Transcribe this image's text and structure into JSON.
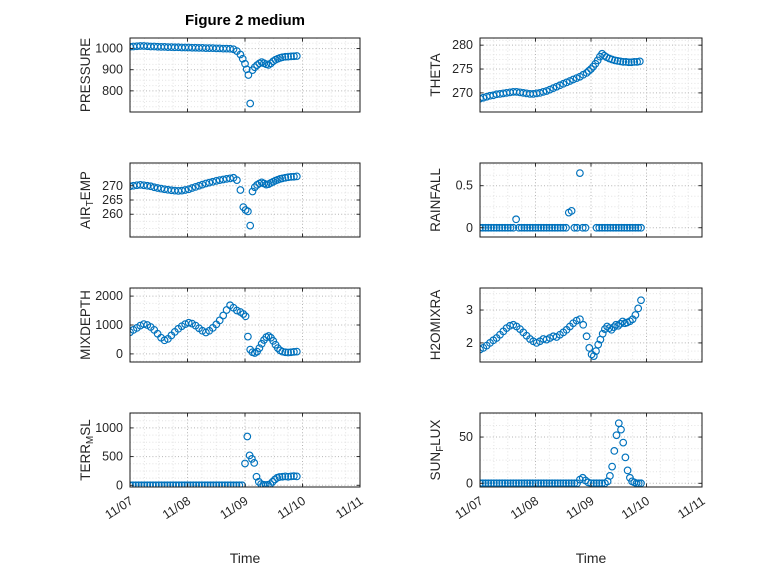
{
  "title": "Figure 2 medium",
  "axis": {
    "xlabel": "Time",
    "xlim": [
      0,
      4
    ],
    "xticks": [
      0,
      1,
      2,
      3,
      4
    ],
    "xticklabels": [
      "11/07",
      "11/08",
      "11/09",
      "11/10",
      "11/11"
    ],
    "x_minor_step": 0.25
  },
  "style": {
    "marker_color": "#0072BD",
    "axis_color": "#1a1a1a",
    "label_color": "#262626",
    "grid_major": "#b5b5b5",
    "grid_minor": "#e2e2e2"
  },
  "chart_data": [
    {
      "type": "scatter",
      "row": 0,
      "col": 0,
      "name": "PRESSURE",
      "ylabel": [
        {
          "text": "PRESSURE",
          "sub": false
        }
      ],
      "ylim": [
        700,
        1050
      ],
      "yticks": [
        800,
        900,
        1000
      ],
      "y_minor_step": 25,
      "x": [
        0,
        0.06,
        0.12,
        0.18,
        0.24,
        0.3,
        0.36,
        0.42,
        0.48,
        0.54,
        0.6,
        0.66,
        0.72,
        0.78,
        0.84,
        0.9,
        0.96,
        1.02,
        1.08,
        1.14,
        1.2,
        1.26,
        1.32,
        1.38,
        1.44,
        1.5,
        1.56,
        1.62,
        1.68,
        1.74,
        1.8,
        1.86,
        1.92,
        1.96,
        2,
        2.03,
        2.06,
        2.09,
        2.13,
        2.17,
        2.21,
        2.25,
        2.29,
        2.33,
        2.37,
        2.41,
        2.45,
        2.49,
        2.53,
        2.57,
        2.61,
        2.65,
        2.7,
        2.75,
        2.8,
        2.85,
        2.9
      ],
      "y": [
        1009,
        1010,
        1011,
        1012,
        1012,
        1011,
        1010,
        1010,
        1009,
        1008,
        1008,
        1007,
        1007,
        1006,
        1006,
        1005,
        1005,
        1005,
        1004,
        1004,
        1003,
        1003,
        1002,
        1002,
        1002,
        1001,
        1001,
        1000,
        1000,
        999,
        997,
        988,
        972,
        952,
        928,
        902,
        875,
        740,
        898,
        912,
        922,
        930,
        936,
        931,
        926,
        923,
        930,
        940,
        947,
        952,
        956,
        959,
        961,
        962,
        963,
        964,
        965
      ]
    },
    {
      "type": "scatter",
      "row": 0,
      "col": 1,
      "name": "THETA",
      "ylabel": [
        {
          "text": "THETA",
          "sub": false
        }
      ],
      "ylim": [
        266,
        281.5
      ],
      "yticks": [
        270,
        275,
        280
      ],
      "y_minor_step": 1,
      "x": [
        0,
        0.06,
        0.12,
        0.18,
        0.24,
        0.3,
        0.36,
        0.42,
        0.48,
        0.54,
        0.6,
        0.66,
        0.72,
        0.78,
        0.84,
        0.9,
        0.96,
        1.02,
        1.08,
        1.14,
        1.2,
        1.26,
        1.32,
        1.38,
        1.44,
        1.5,
        1.56,
        1.62,
        1.68,
        1.74,
        1.8,
        1.86,
        1.92,
        1.96,
        2,
        2.04,
        2.08,
        2.12,
        2.16,
        2.2,
        2.24,
        2.28,
        2.33,
        2.38,
        2.43,
        2.48,
        2.53,
        2.58,
        2.63,
        2.68,
        2.73,
        2.78,
        2.83,
        2.88
      ],
      "y": [
        268.8,
        269,
        269.2,
        269.4,
        269.5,
        269.7,
        269.8,
        269.9,
        270,
        270.1,
        270.2,
        270.2,
        270.1,
        270,
        269.9,
        269.8,
        269.8,
        269.9,
        270,
        270.2,
        270.4,
        270.7,
        271,
        271.3,
        271.6,
        271.9,
        272.2,
        272.5,
        272.8,
        273.1,
        273.4,
        273.8,
        274.2,
        274.6,
        275,
        275.5,
        276.1,
        276.8,
        277.6,
        278.2,
        277.8,
        277.5,
        277.2,
        277,
        276.8,
        276.7,
        276.6,
        276.5,
        276.5,
        276.4,
        276.4,
        276.5,
        276.5,
        276.6
      ]
    },
    {
      "type": "scatter",
      "row": 1,
      "col": 0,
      "name": "AIR_TEMP",
      "ylabel": [
        {
          "text": "AIR",
          "sub": false
        },
        {
          "text": "T",
          "sub": true
        },
        {
          "text": "EMP",
          "sub": false
        }
      ],
      "ylim": [
        252,
        278
      ],
      "yticks": [
        260,
        265,
        270
      ],
      "y_minor_step": 2.5,
      "x": [
        0,
        0.06,
        0.12,
        0.18,
        0.24,
        0.3,
        0.36,
        0.42,
        0.48,
        0.54,
        0.6,
        0.66,
        0.72,
        0.78,
        0.84,
        0.9,
        0.96,
        1.02,
        1.08,
        1.14,
        1.2,
        1.26,
        1.32,
        1.38,
        1.44,
        1.5,
        1.56,
        1.62,
        1.68,
        1.74,
        1.8,
        1.86,
        1.92,
        1.97,
        2.01,
        2.05,
        2.09,
        2.13,
        2.17,
        2.21,
        2.25,
        2.29,
        2.33,
        2.37,
        2.41,
        2.45,
        2.49,
        2.53,
        2.57,
        2.61,
        2.65,
        2.7,
        2.75,
        2.8,
        2.85,
        2.9
      ],
      "y": [
        269.8,
        270,
        270.2,
        270.3,
        270.2,
        270,
        269.8,
        269.5,
        269.2,
        269,
        268.8,
        268.6,
        268.4,
        268.3,
        268.2,
        268.3,
        268.5,
        268.8,
        269.2,
        269.6,
        270,
        270.4,
        270.8,
        271.1,
        271.4,
        271.7,
        272,
        272.2,
        272.4,
        272.6,
        272.8,
        272,
        268.5,
        262.5,
        261.5,
        261,
        256,
        268,
        269.5,
        270.3,
        270.8,
        271.2,
        270.8,
        270.4,
        270.6,
        271,
        271.4,
        271.8,
        272.1,
        272.4,
        272.6,
        272.8,
        273,
        273.1,
        273.2,
        273.3
      ]
    },
    {
      "type": "scatter",
      "row": 1,
      "col": 1,
      "name": "RAINFALL",
      "ylabel": [
        {
          "text": "RAINFALL",
          "sub": false
        }
      ],
      "ylim": [
        -0.11,
        0.77
      ],
      "yticks": [
        0,
        0.5
      ],
      "y_minor_step": 0.125,
      "x": [
        0,
        0.05,
        0.1,
        0.15,
        0.2,
        0.25,
        0.3,
        0.35,
        0.4,
        0.45,
        0.5,
        0.55,
        0.6,
        0.65,
        0.7,
        0.75,
        0.8,
        0.85,
        0.9,
        0.95,
        1,
        1.05,
        1.1,
        1.15,
        1.2,
        1.25,
        1.3,
        1.35,
        1.4,
        1.45,
        1.5,
        1.55,
        1.6,
        1.65,
        1.7,
        1.75,
        1.8,
        1.85,
        1.9,
        2.1,
        2.15,
        2.2,
        2.25,
        2.3,
        2.35,
        2.4,
        2.45,
        2.5,
        2.55,
        2.6,
        2.65,
        2.7,
        2.75,
        2.8,
        2.85,
        2.9
      ],
      "y": [
        0,
        0,
        0,
        0,
        0,
        0,
        0,
        0,
        0,
        0,
        0,
        0,
        0,
        0.1,
        0,
        0,
        0,
        0,
        0,
        0,
        0,
        0,
        0,
        0,
        0,
        0,
        0,
        0,
        0,
        0,
        0,
        0,
        0.18,
        0.2,
        0,
        0,
        0.65,
        0,
        0,
        0,
        0,
        0,
        0,
        0,
        0,
        0,
        0,
        0,
        0,
        0,
        0,
        0,
        0,
        0,
        0,
        0
      ]
    },
    {
      "type": "scatter",
      "row": 2,
      "col": 0,
      "name": "MIXDEPTH",
      "ylabel": [
        {
          "text": "MIXDEPTH",
          "sub": false
        }
      ],
      "ylim": [
        -280,
        2280
      ],
      "yticks": [
        0,
        1000,
        2000
      ],
      "y_minor_step": 250,
      "x": [
        0,
        0.06,
        0.12,
        0.18,
        0.24,
        0.3,
        0.36,
        0.42,
        0.48,
        0.54,
        0.6,
        0.66,
        0.72,
        0.78,
        0.84,
        0.9,
        0.96,
        1.02,
        1.08,
        1.14,
        1.2,
        1.26,
        1.32,
        1.38,
        1.44,
        1.5,
        1.56,
        1.62,
        1.68,
        1.74,
        1.8,
        1.86,
        1.92,
        1.97,
        2.01,
        2.05,
        2.09,
        2.13,
        2.17,
        2.21,
        2.25,
        2.29,
        2.33,
        2.37,
        2.41,
        2.45,
        2.49,
        2.53,
        2.57,
        2.61,
        2.65,
        2.7,
        2.75,
        2.8,
        2.85,
        2.9
      ],
      "y": [
        750,
        830,
        900,
        980,
        1030,
        1000,
        930,
        830,
        700,
        560,
        470,
        520,
        640,
        760,
        870,
        960,
        1030,
        1080,
        1050,
        980,
        890,
        800,
        740,
        800,
        900,
        1020,
        1160,
        1330,
        1520,
        1680,
        1600,
        1500,
        1450,
        1380,
        1300,
        600,
        150,
        60,
        30,
        80,
        200,
        350,
        480,
        580,
        620,
        560,
        450,
        320,
        200,
        120,
        80,
        60,
        50,
        60,
        70,
        80
      ]
    },
    {
      "type": "scatter",
      "row": 2,
      "col": 1,
      "name": "H2OMIXRA",
      "ylabel": [
        {
          "text": "H2OMIXRA",
          "sub": false
        }
      ],
      "ylim": [
        1.42,
        3.67
      ],
      "yticks": [
        2,
        3
      ],
      "y_minor_step": 0.25,
      "x": [
        0,
        0.06,
        0.12,
        0.18,
        0.24,
        0.3,
        0.36,
        0.42,
        0.48,
        0.54,
        0.6,
        0.66,
        0.72,
        0.78,
        0.84,
        0.9,
        0.96,
        1.02,
        1.08,
        1.14,
        1.2,
        1.26,
        1.32,
        1.38,
        1.44,
        1.5,
        1.56,
        1.62,
        1.68,
        1.74,
        1.8,
        1.86,
        1.92,
        1.97,
        2.01,
        2.05,
        2.09,
        2.13,
        2.17,
        2.21,
        2.25,
        2.29,
        2.33,
        2.37,
        2.41,
        2.45,
        2.49,
        2.53,
        2.57,
        2.61,
        2.65,
        2.7,
        2.75,
        2.8,
        2.85,
        2.9
      ],
      "y": [
        1.8,
        1.85,
        1.92,
        2,
        2.08,
        2.15,
        2.25,
        2.35,
        2.45,
        2.52,
        2.55,
        2.5,
        2.42,
        2.32,
        2.22,
        2.12,
        2.05,
        2,
        2.05,
        2.12,
        2.1,
        2.15,
        2.2,
        2.18,
        2.25,
        2.32,
        2.4,
        2.5,
        2.6,
        2.68,
        2.72,
        2.55,
        2.2,
        1.85,
        1.65,
        1.6,
        1.75,
        1.95,
        2.1,
        2.28,
        2.42,
        2.5,
        2.45,
        2.4,
        2.48,
        2.55,
        2.52,
        2.58,
        2.65,
        2.6,
        2.62,
        2.66,
        2.72,
        2.85,
        3.05,
        3.3
      ]
    },
    {
      "type": "scatter",
      "row": 3,
      "col": 0,
      "name": "TERR_MSL",
      "ylabel": [
        {
          "text": "TERR",
          "sub": false
        },
        {
          "text": "M",
          "sub": true
        },
        {
          "text": "SL",
          "sub": false
        }
      ],
      "ylim": [
        -30,
        1260
      ],
      "yticks": [
        0,
        500,
        1000
      ],
      "y_minor_step": 125,
      "x": [
        0,
        0.05,
        0.1,
        0.15,
        0.2,
        0.25,
        0.3,
        0.35,
        0.4,
        0.45,
        0.5,
        0.55,
        0.6,
        0.65,
        0.7,
        0.75,
        0.8,
        0.85,
        0.9,
        0.95,
        1,
        1.05,
        1.1,
        1.15,
        1.2,
        1.25,
        1.3,
        1.35,
        1.4,
        1.45,
        1.5,
        1.55,
        1.6,
        1.65,
        1.7,
        1.75,
        1.8,
        1.85,
        1.9,
        1.95,
        2,
        2.04,
        2.08,
        2.12,
        2.16,
        2.2,
        2.24,
        2.28,
        2.32,
        2.36,
        2.4,
        2.44,
        2.48,
        2.52,
        2.56,
        2.6,
        2.65,
        2.7,
        2.75,
        2.8,
        2.85,
        2.9
      ],
      "y": [
        0,
        0,
        0,
        0,
        0,
        0,
        0,
        0,
        0,
        0,
        0,
        0,
        0,
        0,
        0,
        0,
        0,
        0,
        0,
        0,
        0,
        0,
        0,
        0,
        0,
        0,
        0,
        0,
        0,
        0,
        0,
        0,
        0,
        0,
        0,
        0,
        0,
        0,
        0,
        0,
        380,
        850,
        520,
        460,
        390,
        150,
        60,
        20,
        10,
        5,
        10,
        20,
        60,
        100,
        130,
        145,
        150,
        155,
        150,
        155,
        160,
        155
      ]
    },
    {
      "type": "scatter",
      "row": 3,
      "col": 1,
      "name": "SUN_FLUX",
      "ylabel": [
        {
          "text": "SUN",
          "sub": false
        },
        {
          "text": "F",
          "sub": true
        },
        {
          "text": "LUX",
          "sub": false
        }
      ],
      "ylim": [
        -4,
        76
      ],
      "yticks": [
        0,
        50
      ],
      "y_minor_step": 12.5,
      "x": [
        0,
        0.05,
        0.1,
        0.15,
        0.2,
        0.25,
        0.3,
        0.35,
        0.4,
        0.45,
        0.5,
        0.55,
        0.6,
        0.65,
        0.7,
        0.75,
        0.8,
        0.85,
        0.9,
        0.95,
        1,
        1.05,
        1.1,
        1.15,
        1.2,
        1.25,
        1.3,
        1.35,
        1.4,
        1.45,
        1.5,
        1.55,
        1.6,
        1.65,
        1.7,
        1.75,
        1.8,
        1.85,
        1.9,
        1.95,
        2,
        2.05,
        2.1,
        2.15,
        2.2,
        2.25,
        2.3,
        2.34,
        2.38,
        2.42,
        2.46,
        2.5,
        2.54,
        2.58,
        2.62,
        2.66,
        2.7,
        2.74,
        2.78,
        2.82,
        2.86,
        2.9
      ],
      "y": [
        0,
        0,
        0,
        0,
        0,
        0,
        0,
        0,
        0,
        0,
        0,
        0,
        0,
        0,
        0,
        0,
        0,
        0,
        0,
        0,
        0,
        0,
        0,
        0,
        0,
        0,
        0,
        0,
        0,
        0,
        0,
        0,
        0,
        0,
        0,
        0,
        4,
        6,
        3,
        1,
        0,
        0,
        0,
        0,
        0,
        0,
        2,
        8,
        18,
        35,
        52,
        65,
        58,
        44,
        28,
        14,
        6,
        2,
        1,
        0,
        0,
        0
      ]
    }
  ]
}
